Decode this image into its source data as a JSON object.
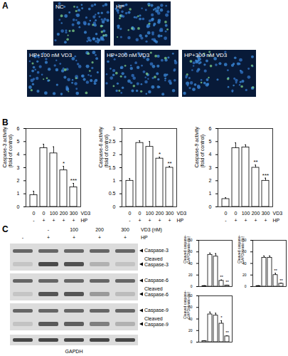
{
  "panel_labels": [
    "A",
    "B",
    "C"
  ],
  "images": [
    "NC",
    "HP",
    "HP+100 nM VD3",
    "HP+200 nM VD3",
    "HP+300 nM VD3"
  ],
  "blot": {
    "header_rows": [
      {
        "label": "VD3 (nM)",
        "values": [
          null,
          "-",
          "100",
          "200",
          "300"
        ]
      },
      {
        "label": "HP",
        "values": [
          "-",
          "+",
          "+",
          "+",
          "+"
        ]
      }
    ],
    "bands": [
      {
        "label": "Caspase-3",
        "cleaved_label": "Cleaved\nCaspase-3"
      },
      {
        "label": "Caspase-6",
        "cleaved_label": "Cleaved\nCaspase-6"
      },
      {
        "label": "Caspase-9",
        "cleaved_label": "Cleaved\nCaspase-9"
      }
    ],
    "loading_control": "GAPDH"
  },
  "chart_data": [
    {
      "type": "bar",
      "y_label": "Caspase-3 activity\n(fold of control)",
      "values": [
        0.9,
        4.5,
        4.1,
        2.8,
        1.5
      ],
      "errors": [
        0.3,
        0.3,
        0.5,
        0.3,
        0.3
      ],
      "significance": [
        null,
        null,
        null,
        "*",
        "***"
      ],
      "x_rows": [
        {
          "label": "VD3",
          "values": [
            "0",
            "0",
            "100",
            "200",
            "300"
          ]
        },
        {
          "label": "HP",
          "values": [
            "-",
            "+",
            "+",
            "+",
            "+"
          ]
        }
      ],
      "ylim": [
        0,
        6
      ],
      "yticks": [
        0,
        1,
        2,
        3,
        4,
        5,
        6
      ],
      "color": "#ffffff"
    },
    {
      "type": "bar",
      "y_label": "Caspase-6 activity\n(fold of control)",
      "values": [
        1.0,
        2.45,
        2.3,
        1.85,
        1.5
      ],
      "errors": [
        0.08,
        0.08,
        0.2,
        0.05,
        0.05
      ],
      "significance": [
        null,
        null,
        null,
        "*",
        "**"
      ],
      "x_rows": [
        {
          "label": "VD3",
          "values": [
            "0",
            "0",
            "100",
            "200",
            "300"
          ]
        },
        {
          "label": "HP",
          "values": [
            "-",
            "+",
            "+",
            "+",
            "+"
          ]
        }
      ],
      "ylim": [
        0,
        3
      ],
      "yticks": [
        0,
        0.5,
        1,
        1.5,
        2,
        2.5,
        3
      ],
      "color": "#ffffff"
    },
    {
      "type": "bar",
      "y_label": "Caspase-9 activity\n(fold of control)",
      "values": [
        0.6,
        4.5,
        4.55,
        3.0,
        2.0
      ],
      "errors": [
        0.1,
        0.4,
        0.2,
        0.2,
        0.2
      ],
      "significance": [
        null,
        null,
        null,
        "**",
        "***"
      ],
      "x_rows": [
        {
          "label": "VD3",
          "values": [
            "0",
            "0",
            "100",
            "200",
            "300"
          ]
        },
        {
          "label": "HP",
          "values": [
            "-",
            "+",
            "+",
            "+",
            "+"
          ]
        }
      ],
      "ylim": [
        0,
        6
      ],
      "yticks": [
        0,
        1,
        2,
        3,
        4,
        5,
        6
      ],
      "color": "#ffffff"
    },
    {
      "type": "bar",
      "y_label": "Cleaved caspase-3/\nGAPDH ratio (%)",
      "values": [
        1,
        55,
        52,
        10,
        2
      ],
      "errors": [
        0.5,
        3,
        5,
        1.5,
        0.5
      ],
      "significance": [
        null,
        null,
        null,
        "**",
        "**"
      ],
      "ylim": [
        0,
        80
      ],
      "yticks": [
        0,
        20,
        40,
        60,
        80
      ],
      "color": "#ffffff"
    },
    {
      "type": "bar",
      "y_label": "Cleaved caspase-6/\nGAPDH ratio (%)",
      "values": [
        1,
        50,
        50,
        20,
        5
      ],
      "errors": [
        0.5,
        3,
        3,
        3,
        1
      ],
      "significance": [
        null,
        null,
        null,
        "**",
        "**"
      ],
      "ylim": [
        0,
        80
      ],
      "yticks": [
        0,
        20,
        40,
        60,
        80
      ],
      "color": "#ffffff"
    },
    {
      "type": "bar",
      "y_label": "Cleaved caspase-9/\nGAPDH ratio (%)",
      "values": [
        2,
        48,
        46,
        32,
        10
      ],
      "errors": [
        0.5,
        4,
        4,
        5,
        1
      ],
      "significance": [
        null,
        null,
        null,
        "*",
        "**"
      ],
      "ylim": [
        0,
        80
      ],
      "yticks": [
        0,
        20,
        40,
        60,
        80
      ],
      "color": "#ffffff"
    }
  ]
}
